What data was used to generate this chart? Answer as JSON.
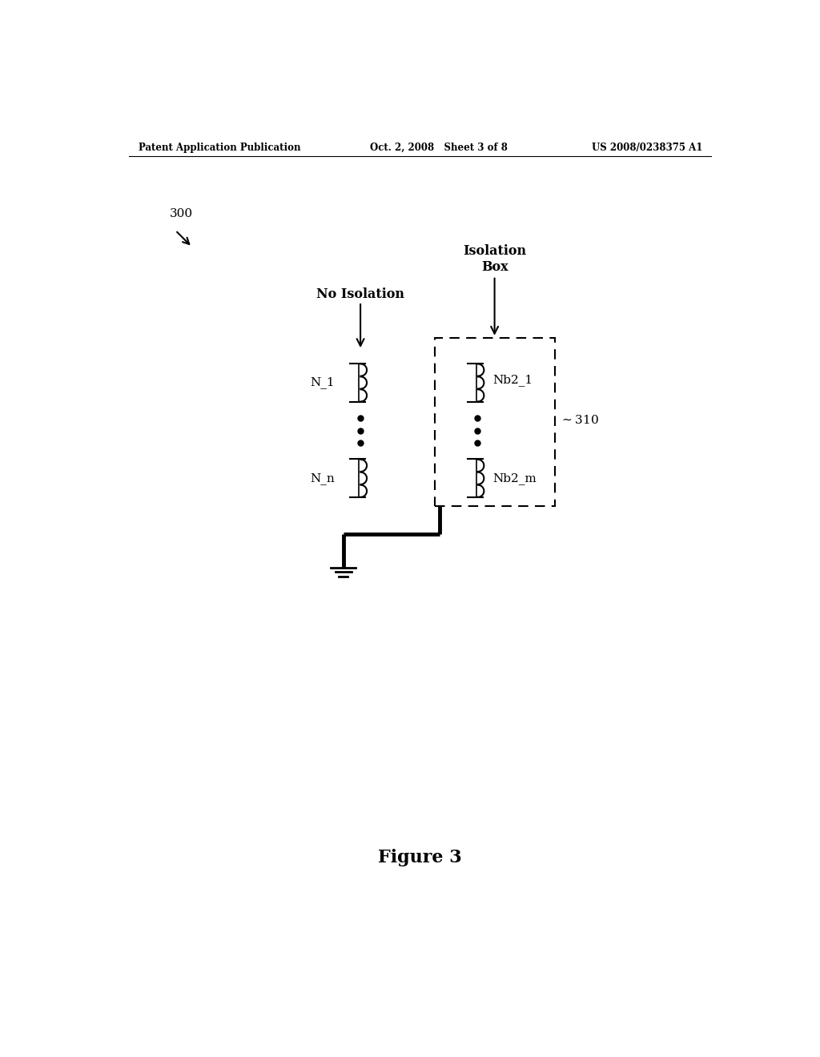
{
  "header_left": "Patent Application Publication",
  "header_mid": "Oct. 2, 2008   Sheet 3 of 8",
  "header_right": "US 2008/0238375 A1",
  "figure_label": "Figure 3",
  "diagram_label": "300",
  "bg_color": "#ffffff",
  "line_color": "#000000",
  "label_no_isolation": "No Isolation",
  "label_isolation_box": "Isolation\nBox",
  "label_310": "310",
  "label_N1": "N_1",
  "label_Nn": "N_n",
  "label_Nb2_1": "Nb2_1",
  "label_Nb2_m": "Nb2_m"
}
